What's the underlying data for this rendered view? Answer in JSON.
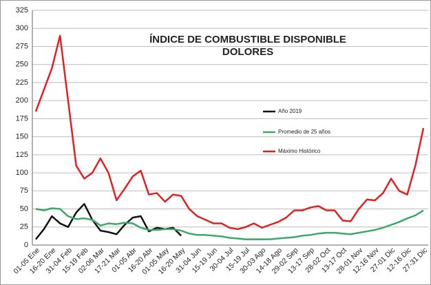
{
  "chart_data": {
    "type": "line",
    "title_lines": [
      "ÍNDICE DE COMBUSTIBLE DISPONIBLE",
      "DOLORES"
    ],
    "categories": [
      "01-05 Ene",
      null,
      "16-20 Ene",
      null,
      "31-04 Feb",
      null,
      "15-19 Feb",
      null,
      "02-06 Mar",
      null,
      "17-21 Mar",
      null,
      "01-05 Abr",
      null,
      "16-20 Abr",
      null,
      "01-05 May",
      null,
      "16-20 May",
      null,
      "31-04 Jun",
      null,
      "15-19 Jun",
      null,
      "30-04 Jul",
      null,
      "15-19 Jul",
      null,
      "30-03 Ago",
      null,
      "14-18 Ago",
      null,
      "29-02 Sep",
      null,
      "13-17 Sep",
      null,
      "28-02 Oct",
      null,
      "13-17 Oct",
      null,
      "28-01 Nov",
      null,
      "12-16 Nov",
      null,
      "27-01 Dic",
      null,
      "12-16 Dic",
      null,
      "27-31 Dic"
    ],
    "series": [
      {
        "name": "Año 2019",
        "color": "#111111",
        "values": [
          8,
          22,
          40,
          30,
          25,
          45,
          57,
          35,
          20,
          18,
          15,
          28,
          38,
          40,
          19,
          24,
          22,
          24,
          13,
          null,
          null,
          null,
          null,
          null,
          null,
          null,
          null,
          null,
          null,
          null,
          null,
          null,
          null,
          null,
          null,
          null,
          null,
          null,
          null,
          null,
          null,
          null,
          null,
          null,
          null,
          null,
          null,
          null,
          null
        ]
      },
      {
        "name": "Promedio de 25 años",
        "color": "#3aa86b",
        "values": [
          50,
          48,
          51,
          50,
          40,
          36,
          37,
          35,
          27,
          30,
          29,
          31,
          30,
          24,
          21,
          21,
          22,
          22,
          20,
          16,
          14,
          14,
          13,
          12,
          10,
          9,
          8,
          8,
          8,
          8,
          9,
          10,
          11,
          13,
          14,
          16,
          17,
          17,
          16,
          15,
          17,
          19,
          21,
          24,
          28,
          32,
          37,
          41,
          48
        ]
      },
      {
        "name": "Máximo Histórico",
        "color": "#e02020",
        "values": [
          185,
          215,
          245,
          290,
          200,
          110,
          92,
          100,
          120,
          100,
          62,
          78,
          95,
          103,
          70,
          72,
          60,
          70,
          68,
          50,
          40,
          35,
          30,
          30,
          24,
          22,
          25,
          30,
          24,
          28,
          32,
          38,
          48,
          48,
          52,
          54,
          48,
          48,
          34,
          33,
          50,
          63,
          62,
          72,
          92,
          75,
          70,
          110,
          162
        ]
      }
    ],
    "ylim": [
      0,
      325
    ],
    "yticks": [
      0,
      25,
      50,
      75,
      100,
      125,
      150,
      175,
      200,
      225,
      250,
      275,
      300,
      325
    ],
    "grid": true
  }
}
